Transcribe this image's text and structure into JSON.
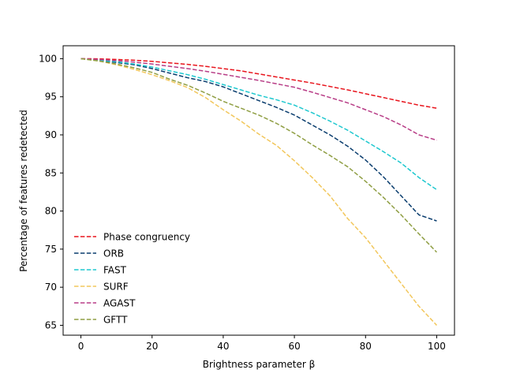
{
  "chart_data": {
    "type": "line",
    "title": "",
    "xlabel": "Brightness parameter β",
    "ylabel": "Percentage of features redetected",
    "xlim": [
      -5,
      105
    ],
    "ylim": [
      63.7,
      101.7
    ],
    "xticks": [
      0,
      20,
      40,
      60,
      80,
      100
    ],
    "yticks": [
      65,
      70,
      75,
      80,
      85,
      90,
      95,
      100
    ],
    "legend_position": "lower-left",
    "x": [
      0,
      5,
      10,
      15,
      20,
      25,
      30,
      35,
      40,
      45,
      50,
      55,
      60,
      65,
      70,
      75,
      80,
      85,
      90,
      95,
      100
    ],
    "series": [
      {
        "name": "Phase congruency",
        "color": "#e8141c",
        "values": [
          100,
          99.98,
          99.9,
          99.8,
          99.65,
          99.45,
          99.25,
          99.0,
          98.7,
          98.4,
          98.0,
          97.6,
          97.2,
          96.8,
          96.35,
          95.9,
          95.4,
          94.9,
          94.4,
          93.9,
          93.5
        ]
      },
      {
        "name": "ORB",
        "color": "#0a3d6e",
        "values": [
          100,
          99.8,
          99.5,
          99.2,
          98.7,
          98.1,
          97.5,
          97.0,
          96.3,
          95.4,
          94.5,
          93.6,
          92.6,
          91.3,
          90.0,
          88.5,
          86.7,
          84.5,
          82.0,
          79.5,
          78.7
        ]
      },
      {
        "name": "FAST",
        "color": "#1ec8cf",
        "values": [
          100,
          99.8,
          99.6,
          99.3,
          98.9,
          98.4,
          97.9,
          97.3,
          96.6,
          95.9,
          95.2,
          94.6,
          93.9,
          92.9,
          91.8,
          90.6,
          89.2,
          87.8,
          86.3,
          84.4,
          82.8
        ]
      },
      {
        "name": "SURF",
        "color": "#f2c75c",
        "values": [
          100,
          99.7,
          99.2,
          98.6,
          97.9,
          97.1,
          96.2,
          94.9,
          93.3,
          91.8,
          90.1,
          88.6,
          86.6,
          84.4,
          82.0,
          79.0,
          76.5,
          73.5,
          70.5,
          67.5,
          65.0
        ]
      },
      {
        "name": "AGAST",
        "color": "#b83d87",
        "values": [
          100,
          99.9,
          99.75,
          99.55,
          99.3,
          99.0,
          98.7,
          98.35,
          97.95,
          97.55,
          97.15,
          96.7,
          96.25,
          95.6,
          94.9,
          94.2,
          93.3,
          92.4,
          91.3,
          90.0,
          89.3
        ]
      },
      {
        "name": "GFTT",
        "color": "#8f9e43",
        "values": [
          100,
          99.7,
          99.3,
          98.8,
          98.2,
          97.3,
          96.5,
          95.5,
          94.4,
          93.5,
          92.6,
          91.5,
          90.2,
          88.7,
          87.3,
          85.8,
          83.9,
          81.8,
          79.5,
          77.0,
          74.6
        ]
      }
    ]
  }
}
